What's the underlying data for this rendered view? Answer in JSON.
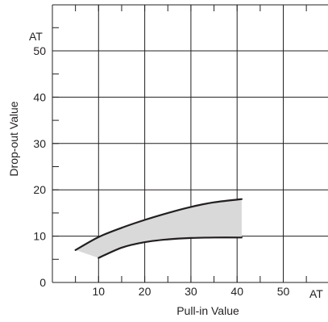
{
  "chart_data": {
    "type": "area",
    "title": "",
    "xlabel": "Pull-in Value",
    "ylabel": "Drop-out Value",
    "x_unit": "AT",
    "y_unit": "AT",
    "xlim": [
      0,
      50
    ],
    "ylim": [
      0,
      50
    ],
    "x_ticks": [
      10,
      20,
      30,
      40,
      50
    ],
    "y_ticks": [
      0,
      10,
      20,
      30,
      40,
      50
    ],
    "grid": true,
    "series": [
      {
        "role": "upper-bound",
        "x": [
          5,
          10,
          15,
          20,
          25,
          30,
          35,
          41
        ],
        "y": [
          7,
          9.8,
          11.8,
          13.5,
          15,
          16.3,
          17.3,
          18
        ]
      },
      {
        "role": "lower-bound",
        "x": [
          10,
          15,
          20,
          25,
          30,
          35,
          41
        ],
        "y": [
          5.3,
          7.5,
          8.7,
          9.3,
          9.6,
          9.7,
          9.7
        ]
      }
    ],
    "band_fill": "#d9d9d9",
    "line_color": "#231f20"
  }
}
